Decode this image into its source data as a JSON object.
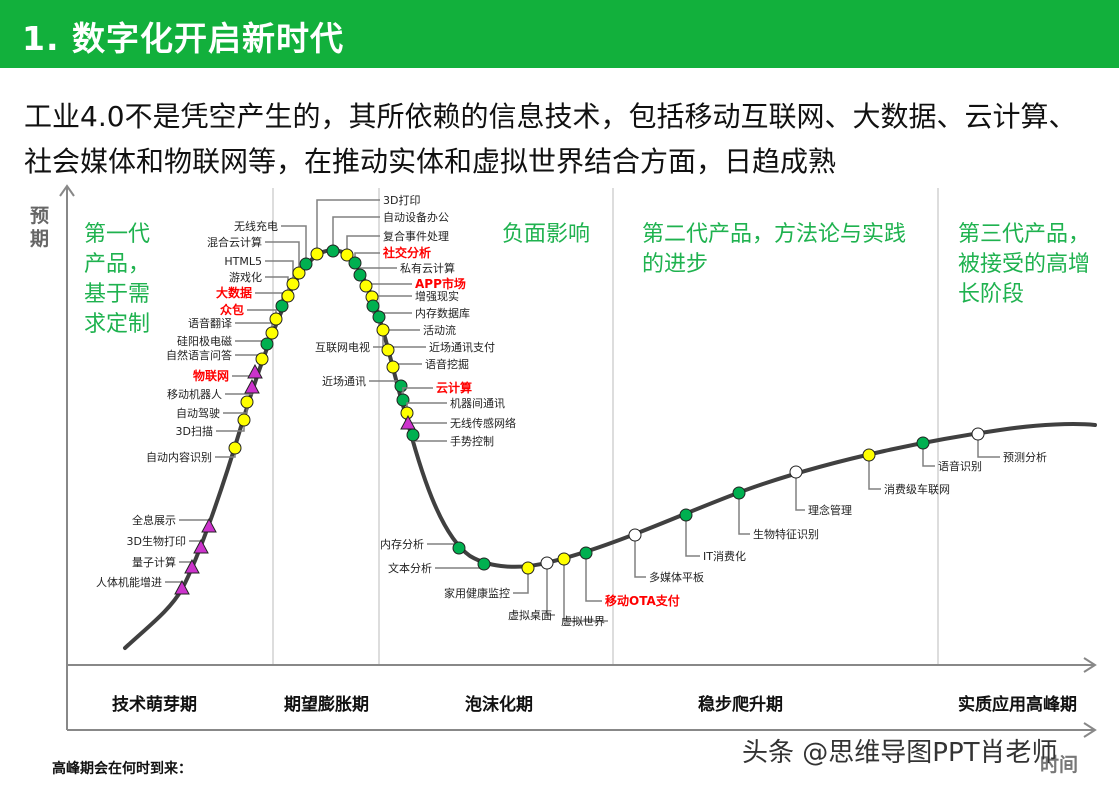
{
  "header": {
    "title": "1. 数字化开启新时代"
  },
  "intro": "工业4.0不是凭空产生的，其所依赖的信息技术，包括移动互联网、大数据、云计算、社会媒体和物联网等，在推动实体和虚拟世界结合方面，日趋成熟",
  "axes": {
    "y_label": "预期",
    "x_label": "时间"
  },
  "phase_descriptions": [
    "第一代产品，基于需求定制",
    "负面影响",
    "第二代产品，方法论与实践的进步",
    "第三代产品，被接受的高增长阶段"
  ],
  "phases": [
    "技术萌芽期",
    "期望膨胀期",
    "泡沫化期",
    "稳步爬升期",
    "实质应用高峰期"
  ],
  "question": "高峰期会在何时到来：",
  "watermark": "头条 @思维导图PPT肖老师",
  "colors": {
    "green": "#00b050",
    "yellow": "#ffff00",
    "white": "#ffffff",
    "triangle": "#cc33cc",
    "highlight": "#ff0000",
    "header": "#12b03c"
  },
  "technologies": [
    {
      "label": "人体机能增进",
      "marker": "triangle",
      "highlight": false
    },
    {
      "label": "量子计算",
      "marker": "triangle",
      "highlight": false
    },
    {
      "label": "3D生物打印",
      "marker": "triangle",
      "highlight": false
    },
    {
      "label": "全息展示",
      "marker": "triangle",
      "highlight": false
    },
    {
      "label": "自动内容识别",
      "marker": "yellow",
      "highlight": false
    },
    {
      "label": "3D扫描",
      "marker": "yellow",
      "highlight": false
    },
    {
      "label": "自动驾驶",
      "marker": "yellow",
      "highlight": false
    },
    {
      "label": "移动机器人",
      "marker": "triangle",
      "highlight": false
    },
    {
      "label": "物联网",
      "marker": "triangle",
      "highlight": true
    },
    {
      "label": "自然语言问答",
      "marker": "yellow",
      "highlight": false
    },
    {
      "label": "硅阳极电磁",
      "marker": "green",
      "highlight": false
    },
    {
      "label": "语音翻译",
      "marker": "yellow",
      "highlight": false
    },
    {
      "label": "众包",
      "marker": "yellow",
      "highlight": true
    },
    {
      "label": "大数据",
      "marker": "green",
      "highlight": true
    },
    {
      "label": "游戏化",
      "marker": "yellow",
      "highlight": false
    },
    {
      "label": "HTML5",
      "marker": "yellow",
      "highlight": false
    },
    {
      "label": "混合云计算",
      "marker": "yellow",
      "highlight": false
    },
    {
      "label": "无线充电",
      "marker": "green",
      "highlight": false
    },
    {
      "label": "3D打印",
      "marker": "yellow",
      "highlight": false
    },
    {
      "label": "自动设备办公",
      "marker": "green",
      "highlight": false
    },
    {
      "label": "复合事件处理",
      "marker": "yellow",
      "highlight": false
    },
    {
      "label": "社交分析",
      "marker": "green",
      "highlight": true
    },
    {
      "label": "私有云计算",
      "marker": "green",
      "highlight": false
    },
    {
      "label": "APP市场",
      "marker": "yellow",
      "highlight": true
    },
    {
      "label": "增强现实",
      "marker": "yellow",
      "highlight": false
    },
    {
      "label": "内存数据库",
      "marker": "green",
      "highlight": false
    },
    {
      "label": "活动流",
      "marker": "green",
      "highlight": false
    },
    {
      "label": "互联网电视",
      "marker": "yellow",
      "highlight": false
    },
    {
      "label": "近场通讯支付",
      "marker": "yellow",
      "highlight": false
    },
    {
      "label": "语音挖掘",
      "marker": "yellow",
      "highlight": false
    },
    {
      "label": "近场通讯",
      "marker": "green",
      "highlight": false
    },
    {
      "label": "云计算",
      "marker": "green",
      "highlight": true
    },
    {
      "label": "机器间通讯",
      "marker": "yellow",
      "highlight": false
    },
    {
      "label": "无线传感网络",
      "marker": "triangle",
      "highlight": false
    },
    {
      "label": "手势控制",
      "marker": "green",
      "highlight": false
    },
    {
      "label": "内存分析",
      "marker": "green",
      "highlight": false
    },
    {
      "label": "文本分析",
      "marker": "green",
      "highlight": false
    },
    {
      "label": "家用健康监控",
      "marker": "yellow",
      "highlight": false
    },
    {
      "label": "虚拟桌面",
      "marker": "white",
      "highlight": false
    },
    {
      "label": "虚拟世界",
      "marker": "yellow",
      "highlight": false
    },
    {
      "label": "移动OTA支付",
      "marker": "green",
      "highlight": true
    },
    {
      "label": "多媒体平板",
      "marker": "white",
      "highlight": false
    },
    {
      "label": "IT消费化",
      "marker": "green",
      "highlight": false
    },
    {
      "label": "生物特征识别",
      "marker": "green",
      "highlight": false
    },
    {
      "label": "理念管理",
      "marker": "white",
      "highlight": false
    },
    {
      "label": "消费级车联网",
      "marker": "yellow",
      "highlight": false
    },
    {
      "label": "语音识别",
      "marker": "green",
      "highlight": false
    },
    {
      "label": "预测分析",
      "marker": "white",
      "highlight": false
    }
  ]
}
